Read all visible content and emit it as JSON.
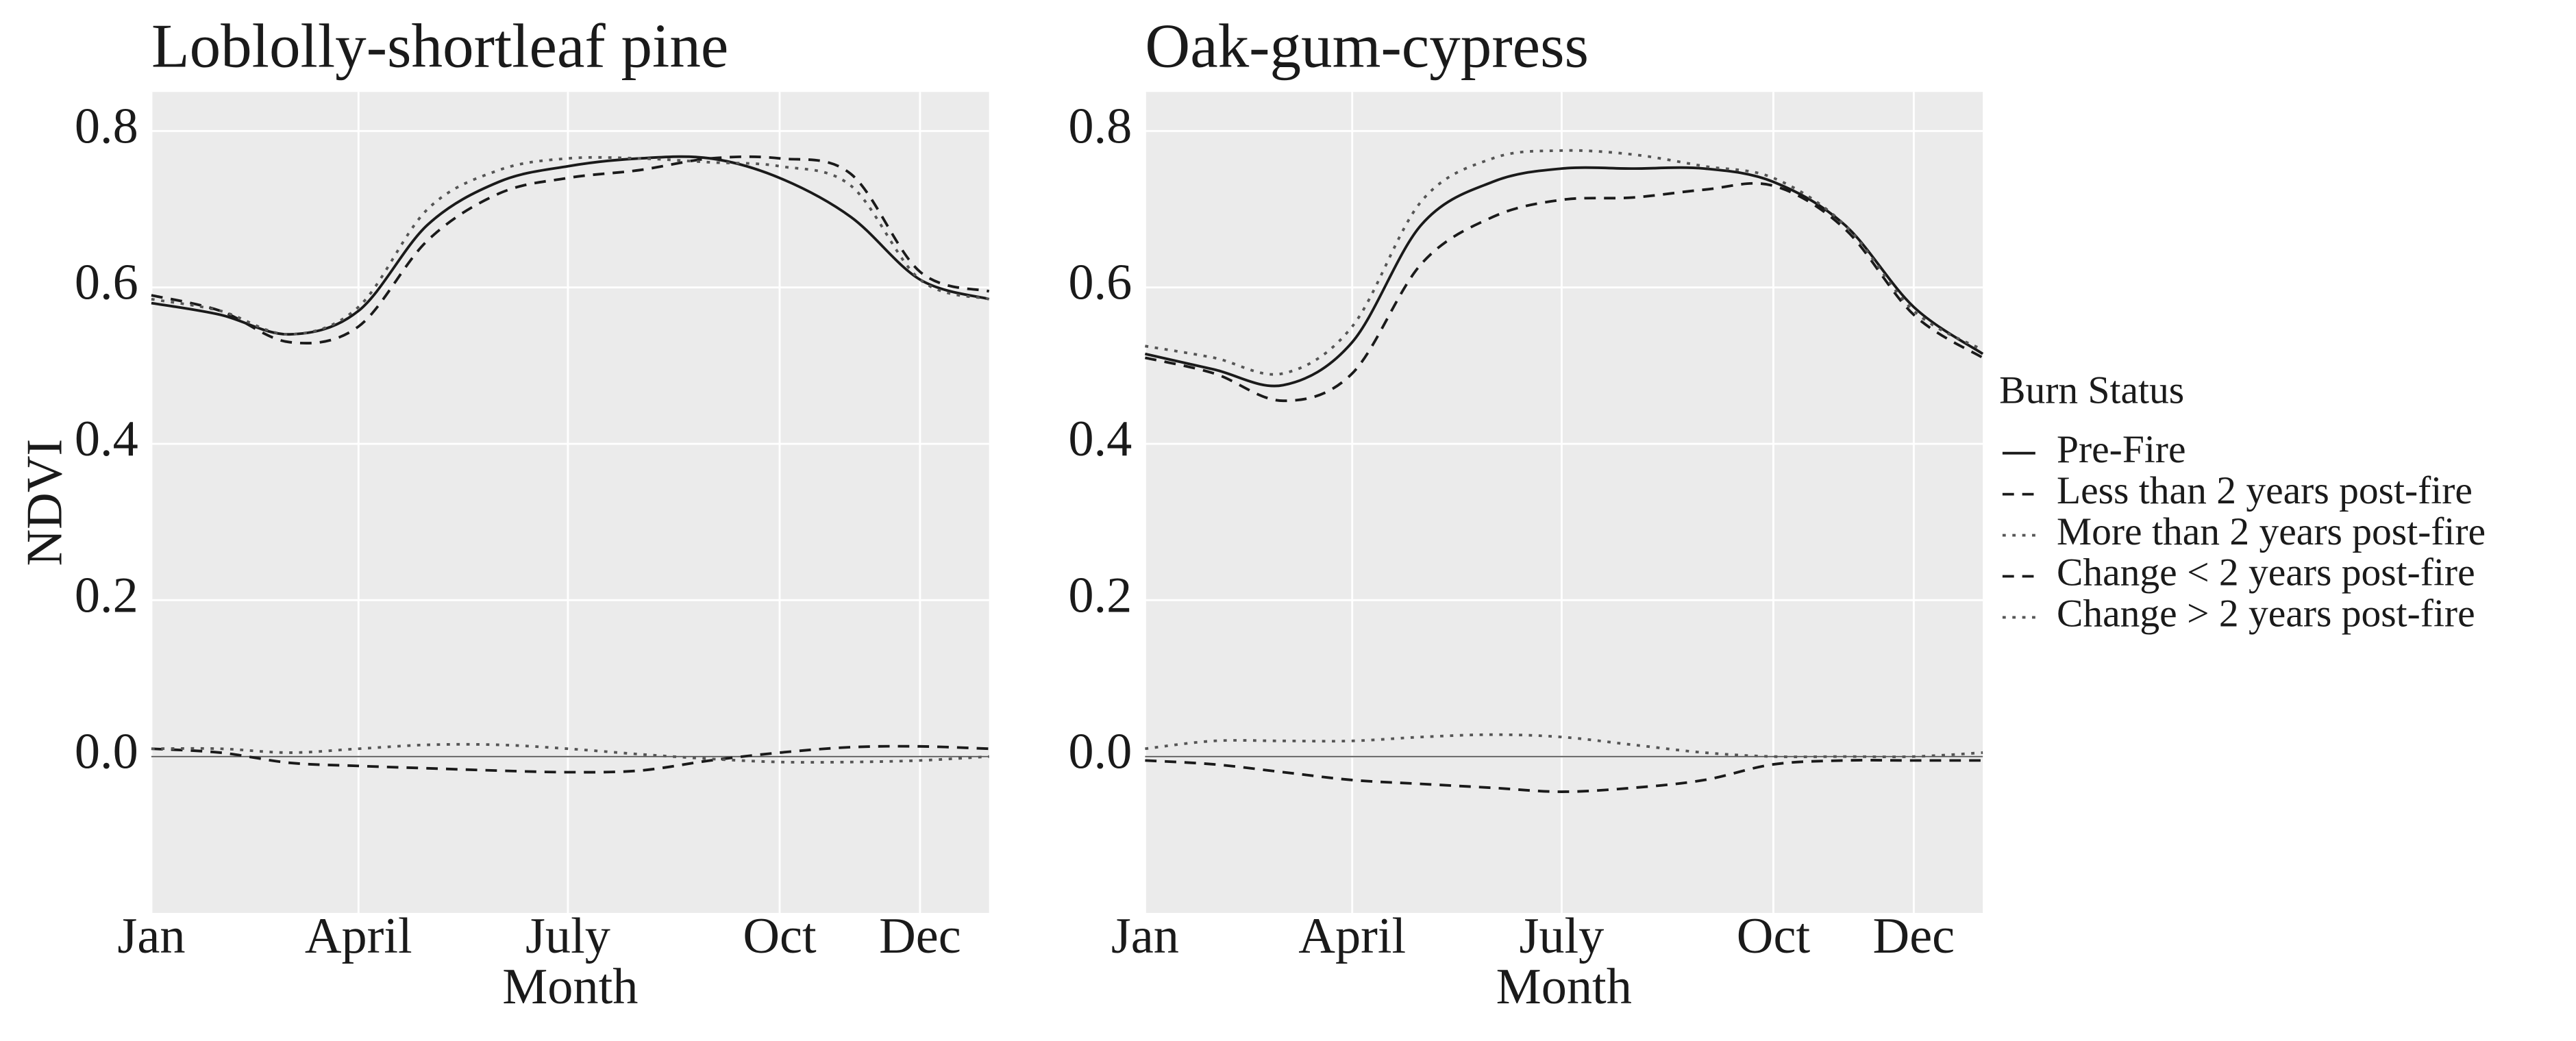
{
  "chart_data": [
    {
      "type": "line",
      "title": "Loblolly-shortleaf pine",
      "xlabel": "Month",
      "ylabel": "NDVI",
      "x": [
        1,
        31,
        61,
        91,
        121,
        152,
        182,
        213,
        244,
        274,
        305,
        335,
        365
      ],
      "xlim": [
        1,
        365
      ],
      "xticks": [
        {
          "value": 1,
          "label": "Jan"
        },
        {
          "value": 91,
          "label": "April"
        },
        {
          "value": 182,
          "label": "July"
        },
        {
          "value": 274,
          "label": "Oct"
        },
        {
          "value": 335,
          "label": "Dec"
        }
      ],
      "ylim": [
        -0.2,
        0.85
      ],
      "yticks": [
        {
          "value": 0,
          "label": "0.0"
        },
        0.2,
        0.4,
        0.6,
        0.8
      ],
      "grid": true,
      "series": [
        {
          "name": "Pre-Fire",
          "color": "#1a1a1a",
          "dash": "solid",
          "values": [
            0.58,
            0.565,
            0.54,
            0.57,
            0.68,
            0.735,
            0.755,
            0.765,
            0.765,
            0.74,
            0.69,
            0.61,
            0.585
          ]
        },
        {
          "name": "Less than 2 years post-fire",
          "color": "#1a1a1a",
          "dash": "dashed",
          "values": [
            0.59,
            0.57,
            0.53,
            0.55,
            0.66,
            0.72,
            0.74,
            0.75,
            0.765,
            0.765,
            0.745,
            0.62,
            0.595
          ]
        },
        {
          "name": "More than 2 years post-fire",
          "color": "#555555",
          "dash": "dotted",
          "values": [
            0.585,
            0.57,
            0.54,
            0.575,
            0.7,
            0.75,
            0.765,
            0.765,
            0.76,
            0.755,
            0.73,
            0.61,
            0.585
          ]
        },
        {
          "name": "Change < 2 years post-fire",
          "color": "#1a1a1a",
          "dash": "dashed",
          "values": [
            0.01,
            0.005,
            -0.008,
            -0.012,
            -0.015,
            -0.018,
            -0.02,
            -0.018,
            -0.005,
            0.005,
            0.012,
            0.013,
            0.01
          ]
        },
        {
          "name": "Change > 2 years post-fire",
          "color": "#555555",
          "dash": "dotted",
          "values": [
            0.01,
            0.01,
            0.005,
            0.01,
            0.015,
            0.015,
            0.01,
            0.003,
            -0.003,
            -0.007,
            -0.007,
            -0.005,
            0
          ]
        }
      ]
    },
    {
      "type": "line",
      "title": "Oak-gum-cypress",
      "xlabel": "Month",
      "legend_title": "Burn Status",
      "legend": "right",
      "x": [
        1,
        31,
        61,
        91,
        121,
        152,
        182,
        213,
        244,
        274,
        305,
        335,
        365
      ],
      "xlim": [
        1,
        365
      ],
      "xticks": [
        {
          "value": 1,
          "label": "Jan"
        },
        {
          "value": 91,
          "label": "April"
        },
        {
          "value": 182,
          "label": "July"
        },
        {
          "value": 274,
          "label": "Oct"
        },
        {
          "value": 335,
          "label": "Dec"
        }
      ],
      "ylim": [
        -0.2,
        0.85
      ],
      "yticks": [
        {
          "value": 0,
          "label": "0.0"
        },
        0.2,
        0.4,
        0.6,
        0.8
      ],
      "grid": true,
      "series": [
        {
          "name": "Pre-Fire",
          "color": "#1a1a1a",
          "dash": "solid",
          "values": [
            0.515,
            0.495,
            0.475,
            0.53,
            0.68,
            0.735,
            0.752,
            0.752,
            0.752,
            0.735,
            0.68,
            0.575,
            0.515
          ]
        },
        {
          "name": "Less than 2 years post-fire",
          "color": "#1a1a1a",
          "dash": "dashed",
          "values": [
            0.51,
            0.49,
            0.455,
            0.49,
            0.63,
            0.69,
            0.712,
            0.715,
            0.725,
            0.73,
            0.675,
            0.565,
            0.51
          ]
        },
        {
          "name": "More than 2 years post-fire",
          "color": "#555555",
          "dash": "dotted",
          "values": [
            0.525,
            0.51,
            0.49,
            0.55,
            0.71,
            0.765,
            0.775,
            0.77,
            0.755,
            0.74,
            0.68,
            0.57,
            0.52
          ]
        },
        {
          "name": "Change < 2 years post-fire",
          "color": "#1a1a1a",
          "dash": "dashed",
          "values": [
            -0.005,
            -0.01,
            -0.02,
            -0.03,
            -0.035,
            -0.04,
            -0.045,
            -0.04,
            -0.03,
            -0.01,
            -0.005,
            -0.005,
            -0.005
          ]
        },
        {
          "name": "Change > 2 years post-fire",
          "color": "#555555",
          "dash": "dotted",
          "values": [
            0.01,
            0.02,
            0.02,
            0.02,
            0.025,
            0.028,
            0.025,
            0.015,
            0.005,
            0,
            0,
            0,
            0.005
          ]
        }
      ]
    }
  ]
}
